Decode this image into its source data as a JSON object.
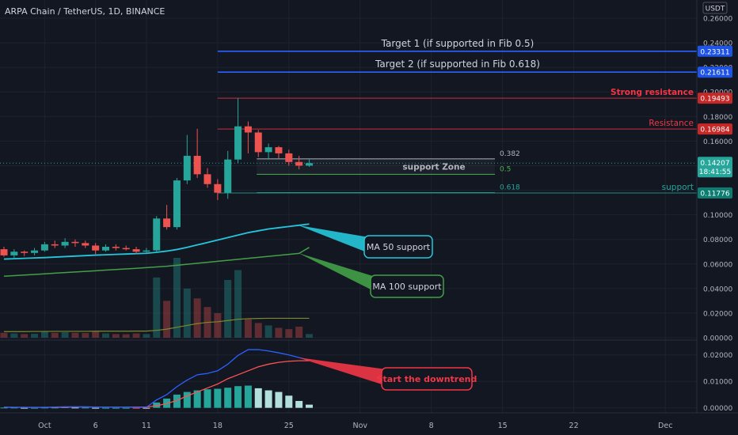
{
  "chart_data": {
    "type": "candlestick",
    "title": "ARPA Chain / TetherUS, 1D, BINANCE",
    "currency": "USDT",
    "x_tick_labels": [
      "Oct",
      "6",
      "11",
      "18",
      "25",
      "Nov",
      "8",
      "15",
      "22",
      "Dec"
    ],
    "y_ticks": [
      "0.26000",
      "0.24000",
      "0.22000",
      "0.20000",
      "0.18000",
      "0.16000",
      "0.14000",
      "0.12000",
      "0.10000",
      "0.08000",
      "0.06000",
      "0.04000",
      "0.02000",
      "0.00000"
    ],
    "osc_ticks": [
      "0.02000",
      "0.01000",
      "0.00000"
    ],
    "price_range": [
      0,
      0.26
    ],
    "osc_range": [
      -0.001,
      0.025
    ],
    "candles": [
      {
        "date": "2021-09-27",
        "o": 0.072,
        "h": 0.074,
        "l": 0.066,
        "c": 0.067,
        "v": 0.004
      },
      {
        "date": "2021-09-28",
        "o": 0.067,
        "h": 0.072,
        "l": 0.065,
        "c": 0.07,
        "v": 0.0035
      },
      {
        "date": "2021-09-29",
        "o": 0.07,
        "h": 0.071,
        "l": 0.0665,
        "c": 0.069,
        "v": 0.003
      },
      {
        "date": "2021-09-30",
        "o": 0.069,
        "h": 0.073,
        "l": 0.067,
        "c": 0.071,
        "v": 0.0032
      },
      {
        "date": "2021-10-01",
        "o": 0.071,
        "h": 0.078,
        "l": 0.07,
        "c": 0.076,
        "v": 0.005
      },
      {
        "date": "2021-10-02",
        "o": 0.076,
        "h": 0.079,
        "l": 0.073,
        "c": 0.075,
        "v": 0.004
      },
      {
        "date": "2021-10-03",
        "o": 0.075,
        "h": 0.081,
        "l": 0.073,
        "c": 0.078,
        "v": 0.0045
      },
      {
        "date": "2021-10-04",
        "o": 0.078,
        "h": 0.08,
        "l": 0.074,
        "c": 0.077,
        "v": 0.004
      },
      {
        "date": "2021-10-05",
        "o": 0.077,
        "h": 0.079,
        "l": 0.073,
        "c": 0.075,
        "v": 0.0038
      },
      {
        "date": "2021-10-06",
        "o": 0.075,
        "h": 0.077,
        "l": 0.068,
        "c": 0.071,
        "v": 0.005
      },
      {
        "date": "2021-10-07",
        "o": 0.071,
        "h": 0.076,
        "l": 0.07,
        "c": 0.074,
        "v": 0.0035
      },
      {
        "date": "2021-10-08",
        "o": 0.074,
        "h": 0.076,
        "l": 0.071,
        "c": 0.073,
        "v": 0.003
      },
      {
        "date": "2021-10-09",
        "o": 0.073,
        "h": 0.075,
        "l": 0.071,
        "c": 0.072,
        "v": 0.0028
      },
      {
        "date": "2021-10-10",
        "o": 0.072,
        "h": 0.074,
        "l": 0.068,
        "c": 0.07,
        "v": 0.0035
      },
      {
        "date": "2021-10-11",
        "o": 0.07,
        "h": 0.073,
        "l": 0.069,
        "c": 0.071,
        "v": 0.003
      },
      {
        "date": "2021-10-12",
        "o": 0.071,
        "h": 0.099,
        "l": 0.07,
        "c": 0.097,
        "v": 0.049
      },
      {
        "date": "2021-10-13",
        "o": 0.097,
        "h": 0.108,
        "l": 0.088,
        "c": 0.09,
        "v": 0.03
      },
      {
        "date": "2021-10-14",
        "o": 0.09,
        "h": 0.13,
        "l": 0.088,
        "c": 0.128,
        "v": 0.065
      },
      {
        "date": "2021-10-15",
        "o": 0.128,
        "h": 0.165,
        "l": 0.125,
        "c": 0.148,
        "v": 0.04
      },
      {
        "date": "2021-10-16",
        "o": 0.148,
        "h": 0.17,
        "l": 0.13,
        "c": 0.133,
        "v": 0.032
      },
      {
        "date": "2021-10-17",
        "o": 0.133,
        "h": 0.138,
        "l": 0.122,
        "c": 0.125,
        "v": 0.025
      },
      {
        "date": "2021-10-18",
        "o": 0.125,
        "h": 0.129,
        "l": 0.112,
        "c": 0.118,
        "v": 0.02
      },
      {
        "date": "2021-10-19",
        "o": 0.118,
        "h": 0.152,
        "l": 0.113,
        "c": 0.145,
        "v": 0.047
      },
      {
        "date": "2021-10-20",
        "o": 0.145,
        "h": 0.195,
        "l": 0.142,
        "c": 0.172,
        "v": 0.055
      },
      {
        "date": "2021-10-21",
        "o": 0.172,
        "h": 0.176,
        "l": 0.15,
        "c": 0.167,
        "v": 0.015
      },
      {
        "date": "2021-10-22",
        "o": 0.167,
        "h": 0.169,
        "l": 0.147,
        "c": 0.151,
        "v": 0.012
      },
      {
        "date": "2021-10-23",
        "o": 0.151,
        "h": 0.158,
        "l": 0.145,
        "c": 0.155,
        "v": 0.01
      },
      {
        "date": "2021-10-24",
        "o": 0.155,
        "h": 0.156,
        "l": 0.146,
        "c": 0.15,
        "v": 0.008
      },
      {
        "date": "2021-10-25",
        "o": 0.15,
        "h": 0.153,
        "l": 0.14,
        "c": 0.143,
        "v": 0.007
      },
      {
        "date": "2021-10-26",
        "o": 0.143,
        "h": 0.148,
        "l": 0.137,
        "c": 0.14,
        "v": 0.009
      },
      {
        "date": "2021-10-27",
        "o": 0.14,
        "h": 0.145,
        "l": 0.139,
        "c": 0.1421,
        "v": 0.003
      }
    ],
    "ma50": [
      0.064,
      0.0643,
      0.0646,
      0.0649,
      0.0652,
      0.0656,
      0.066,
      0.0664,
      0.0668,
      0.0672,
      0.0675,
      0.0678,
      0.0681,
      0.0684,
      0.0687,
      0.0695,
      0.0705,
      0.0718,
      0.0735,
      0.0755,
      0.0775,
      0.0795,
      0.0815,
      0.0835,
      0.0855,
      0.087,
      0.0885,
      0.0895,
      0.0905,
      0.0915,
      0.0925
    ],
    "ma100": [
      0.05,
      0.0505,
      0.051,
      0.0515,
      0.052,
      0.0525,
      0.053,
      0.0535,
      0.054,
      0.0545,
      0.055,
      0.0555,
      0.056,
      0.0565,
      0.057,
      0.0576,
      0.0582,
      0.059,
      0.0598,
      0.0606,
      0.0614,
      0.0622,
      0.063,
      0.0638,
      0.0646,
      0.0654,
      0.0662,
      0.067,
      0.0678,
      0.0686,
      0.0735
    ],
    "volume_ma": [
      0.005,
      0.005,
      0.005,
      0.0051,
      0.0051,
      0.0052,
      0.0052,
      0.0052,
      0.0052,
      0.0053,
      0.0053,
      0.0053,
      0.0053,
      0.0054,
      0.0054,
      0.006,
      0.007,
      0.0085,
      0.01,
      0.0115,
      0.0125,
      0.013,
      0.014,
      0.015,
      0.0155,
      0.0157,
      0.0158,
      0.0158,
      0.0158,
      0.0158,
      0.0158
    ],
    "macd_line": [
      0.0003,
      0.0002,
      0.0002,
      0.0001,
      0.0002,
      0.0003,
      0.0004,
      0.0004,
      0.0004,
      0.0003,
      0.0003,
      0.0003,
      0.0003,
      0.0002,
      0.0002,
      0.003,
      0.005,
      0.008,
      0.0105,
      0.0125,
      0.013,
      0.014,
      0.0165,
      0.0198,
      0.022,
      0.022,
      0.0215,
      0.0208,
      0.02,
      0.019,
      0.018
    ],
    "signal_line": [
      0.0002,
      0.0002,
      0.0002,
      0.0002,
      0.0002,
      0.0002,
      0.0002,
      0.0003,
      0.0003,
      0.0003,
      0.0003,
      0.0003,
      0.0003,
      0.0003,
      0.0003,
      0.0008,
      0.0016,
      0.0028,
      0.0045,
      0.006,
      0.0075,
      0.009,
      0.011,
      0.0125,
      0.014,
      0.0155,
      0.0165,
      0.0172,
      0.0176,
      0.0178,
      0.0178
    ],
    "histogram": [
      0.0001,
      0.0001,
      0.0,
      0.0,
      0.0001,
      0.0001,
      0.0002,
      0.0001,
      0.0001,
      0.0,
      0.0,
      0.0,
      0.0,
      -0.0001,
      -0.0001,
      0.002,
      0.0035,
      0.005,
      0.006,
      0.0066,
      0.007,
      0.0072,
      0.0076,
      0.0082,
      0.0084,
      0.0074,
      0.0066,
      0.006,
      0.0046,
      0.0026,
      0.0012
    ],
    "levels": [
      {
        "value": 0.23311,
        "label": "Target 1 (if supported in Fib 0.5)",
        "color": "#2962ff",
        "badge_color": "#1e53e5"
      },
      {
        "value": 0.21611,
        "label": "Target 2 (if supported in Fib 0.618)",
        "color": "#2962ff",
        "badge_color": "#1e53e5"
      },
      {
        "value": 0.19493,
        "label": "Strong resistance",
        "color": "#f23645",
        "badge_color": "#c62828"
      },
      {
        "value": 0.16984,
        "label": "Resistance",
        "color": "#f23645",
        "badge_color": "#c62828"
      },
      {
        "value": 0.11776,
        "label": "support",
        "color": "#26a69a",
        "badge_color": "#0d7d72"
      }
    ],
    "current_price": "0.14207",
    "countdown": "18:41:55",
    "fib": [
      {
        "ratio": "0.382",
        "value": 0.1455,
        "color": "#b2b5be"
      },
      {
        "ratio": "0.5",
        "value": 0.133,
        "color": "#4caf50"
      },
      {
        "ratio": "0.618",
        "value": 0.118,
        "color": "#26a69a"
      }
    ],
    "support_zone_label": "support Zone",
    "callouts": {
      "ma50": "MA 50 support",
      "ma100": "MA 100 support",
      "downtrend": "Start the downtrend"
    },
    "colors": {
      "up": "#26a69a",
      "down": "#ef5350",
      "ma50": "#26c6da",
      "ma100": "#43a047",
      "macd": "#2962ff",
      "signal": "#ff5252",
      "volume_ma": "#7c8a2e"
    }
  }
}
